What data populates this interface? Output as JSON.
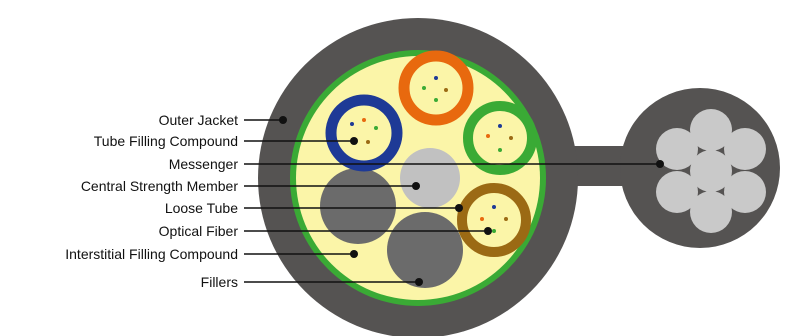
{
  "labels": {
    "outer_jacket": "Outer Jacket",
    "tube_filling_compound": "Tube Filling Compound",
    "messenger": "Messenger",
    "central_strength_member": "Central Strength Member",
    "loose_tube": "Loose Tube",
    "optical_fiber": "Optical Fiber",
    "interstitial_filling_compound": "Interstitial Filling Compound",
    "fillers": "Fillers"
  },
  "colors": {
    "jacket": "#555352",
    "green_ring": "#3aaa35",
    "filling": "#fbf5a8",
    "tube_blue": "#1e3a96",
    "tube_orange": "#e8690e",
    "tube_green": "#3aaa35",
    "tube_brown": "#9b6a14",
    "tube_inner": "#fbf5a8",
    "strength_member": "#c1c1c1",
    "filler": "#6b6b6b",
    "messenger_wire": "#c9c9c9",
    "leader": "#111111"
  }
}
